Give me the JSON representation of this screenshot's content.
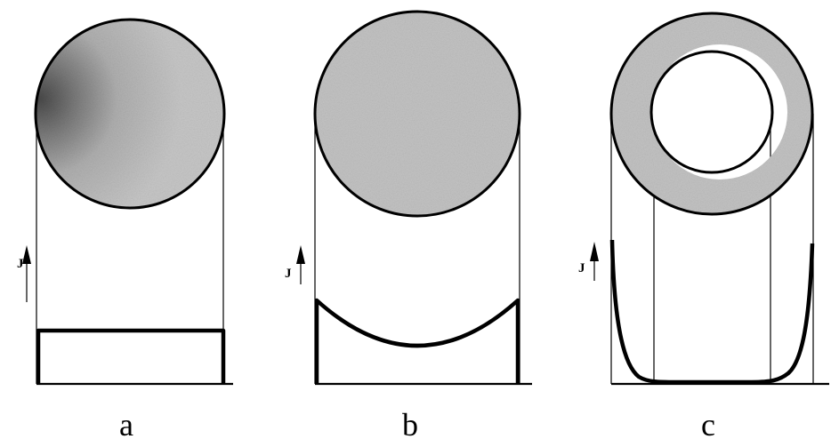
{
  "panels": [
    {
      "id": "a",
      "label": "a",
      "axis_label": "J",
      "cross_section": "solid-circle",
      "shading": "graded",
      "profile": "uniform"
    },
    {
      "id": "b",
      "label": "b",
      "axis_label": "J",
      "cross_section": "solid-circle",
      "shading": "uniform",
      "profile": "concave"
    },
    {
      "id": "c",
      "label": "c",
      "axis_label": "J",
      "cross_section": "annulus",
      "shading": "uniform",
      "profile": "edge-peaked"
    }
  ],
  "colors": {
    "line": "#000000",
    "stipple": "#b8b8b8",
    "stipple_dark": "#555555",
    "background": "#ffffff"
  }
}
